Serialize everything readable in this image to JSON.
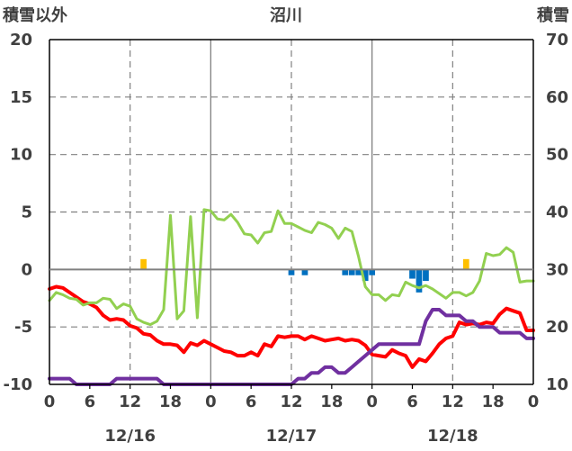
{
  "chart_data": {
    "type": "line",
    "title": "沼川",
    "left_axis_label": "積雪以外",
    "right_axis_label": "積雪",
    "y_left": {
      "min": -10,
      "max": 20,
      "ticks": [
        20,
        15,
        10,
        5,
        0,
        -5,
        -10
      ]
    },
    "y_right": {
      "min": 10,
      "max": 70,
      "ticks": [
        70,
        60,
        50,
        40,
        30,
        20,
        10
      ]
    },
    "x_hours": {
      "min": 0,
      "max": 72,
      "tick_step": 6
    },
    "x_tick_labels": [
      "0",
      "6",
      "12",
      "18",
      "0",
      "6",
      "12",
      "18",
      "0",
      "6",
      "12",
      "18",
      "0"
    ],
    "date_labels": [
      {
        "text": "12/16",
        "hour": 12
      },
      {
        "text": "12/17",
        "hour": 36
      },
      {
        "text": "12/18",
        "hour": 60
      }
    ],
    "colors": {
      "temperature": "#ff0000",
      "green_series": "#92d050",
      "snow_depth": "#7030a0",
      "bar_negative": "#0070c0",
      "bar_positive": "#ffc000",
      "axis": "#000000",
      "grid": "#808080",
      "text": "#404040"
    },
    "series": [
      {
        "key": "temperature",
        "axis": "left",
        "x": [
          0,
          1,
          2,
          3,
          4,
          5,
          6,
          7,
          8,
          9,
          10,
          11,
          12,
          13,
          14,
          15,
          16,
          17,
          18,
          19,
          20,
          21,
          22,
          23,
          24,
          25,
          26,
          27,
          28,
          29,
          30,
          31,
          32,
          33,
          34,
          35,
          36,
          37,
          38,
          39,
          40,
          41,
          42,
          43,
          44,
          45,
          46,
          47,
          48,
          49,
          50,
          51,
          52,
          53,
          54,
          55,
          56,
          57,
          58,
          59,
          60,
          61,
          62,
          63,
          64,
          65,
          66,
          67,
          68,
          69,
          70,
          71,
          72
        ],
        "values": [
          -1.7,
          -1.5,
          -1.6,
          -2.0,
          -2.4,
          -2.8,
          -3.0,
          -3.3,
          -4.0,
          -4.4,
          -4.3,
          -4.4,
          -4.9,
          -5.1,
          -5.6,
          -5.7,
          -6.2,
          -6.5,
          -6.5,
          -6.6,
          -7.2,
          -6.4,
          -6.6,
          -6.2,
          -6.5,
          -6.8,
          -7.1,
          -7.2,
          -7.5,
          -7.5,
          -7.2,
          -7.5,
          -6.5,
          -6.7,
          -5.8,
          -5.9,
          -5.8,
          -5.8,
          -6.1,
          -5.8,
          -6.0,
          -6.2,
          -6.1,
          -6.0,
          -6.2,
          -6.1,
          -6.2,
          -6.6,
          -7.4,
          -7.5,
          -7.6,
          -7.0,
          -7.3,
          -7.5,
          -8.5,
          -7.8,
          -8.0,
          -7.3,
          -6.5,
          -6.0,
          -5.8,
          -4.6,
          -4.8,
          -4.7,
          -4.8,
          -4.6,
          -4.7,
          -3.9,
          -3.4,
          -3.6,
          -3.8,
          -5.3,
          -5.3
        ]
      },
      {
        "key": "green_series",
        "axis": "left",
        "x": [
          0,
          1,
          2,
          3,
          4,
          5,
          6,
          7,
          8,
          9,
          10,
          11,
          12,
          13,
          14,
          15,
          16,
          17,
          18,
          19,
          20,
          21,
          22,
          23,
          24,
          25,
          26,
          27,
          28,
          29,
          30,
          31,
          32,
          33,
          34,
          35,
          36,
          37,
          38,
          39,
          40,
          41,
          42,
          43,
          44,
          45,
          46,
          47,
          48,
          49,
          50,
          51,
          52,
          53,
          54,
          55,
          56,
          57,
          58,
          59,
          60,
          61,
          62,
          63,
          64,
          65,
          66,
          67,
          68,
          69,
          70,
          71,
          72
        ],
        "values": [
          -2.7,
          -2.0,
          -2.2,
          -2.5,
          -2.6,
          -3.1,
          -2.9,
          -2.9,
          -2.5,
          -2.6,
          -3.4,
          -3.0,
          -3.2,
          -4.3,
          -4.6,
          -4.8,
          -4.5,
          -3.5,
          4.7,
          -4.3,
          -3.6,
          4.6,
          -4.2,
          5.2,
          5.1,
          4.4,
          4.3,
          4.8,
          4.1,
          3.1,
          3.0,
          2.3,
          3.2,
          3.3,
          5.1,
          4.0,
          4.0,
          3.7,
          3.4,
          3.2,
          4.1,
          3.9,
          3.6,
          2.7,
          3.6,
          3.3,
          1.1,
          -1.5,
          -2.2,
          -2.2,
          -2.7,
          -2.2,
          -2.3,
          -1.1,
          -1.4,
          -1.6,
          -1.4,
          -1.7,
          -2.1,
          -2.5,
          -2.0,
          -2.0,
          -2.3,
          -2.0,
          -1.0,
          1.4,
          1.2,
          1.3,
          1.9,
          1.5,
          -1.1,
          -1.0,
          -1.0
        ]
      },
      {
        "key": "snow_depth",
        "axis": "right",
        "x": [
          0,
          1,
          2,
          3,
          4,
          5,
          6,
          7,
          8,
          9,
          10,
          11,
          12,
          13,
          14,
          15,
          16,
          17,
          18,
          19,
          20,
          21,
          22,
          23,
          24,
          25,
          26,
          27,
          28,
          29,
          30,
          31,
          32,
          33,
          34,
          35,
          36,
          37,
          38,
          39,
          40,
          41,
          42,
          43,
          44,
          45,
          46,
          47,
          48,
          49,
          50,
          51,
          52,
          53,
          54,
          55,
          56,
          57,
          58,
          59,
          60,
          61,
          62,
          63,
          64,
          65,
          66,
          67,
          68,
          69,
          70,
          71,
          72
        ],
        "values": [
          11,
          11,
          11,
          11,
          10,
          10,
          10,
          10,
          10,
          10,
          11,
          11,
          11,
          11,
          11,
          11,
          11,
          10,
          10,
          10,
          10,
          10,
          10,
          10,
          10,
          10,
          10,
          10,
          10,
          10,
          10,
          10,
          10,
          10,
          10,
          10,
          10,
          11,
          11,
          12,
          12,
          13,
          13,
          12,
          12,
          13,
          14,
          15,
          16,
          17,
          17,
          17,
          17,
          17,
          17,
          17,
          21,
          23,
          23,
          22,
          22,
          22,
          21,
          21,
          20,
          20,
          20,
          19,
          19,
          19,
          19,
          18,
          18
        ]
      }
    ],
    "bars": {
      "axis": "left",
      "hours": [
        14,
        36,
        38,
        44,
        45,
        46,
        47,
        48,
        54,
        55,
        56,
        62
      ],
      "values": [
        0.9,
        -0.5,
        -0.5,
        -0.5,
        -0.5,
        -0.5,
        -1.0,
        -0.5,
        -0.8,
        -2.0,
        -1.0,
        0.9
      ]
    }
  }
}
